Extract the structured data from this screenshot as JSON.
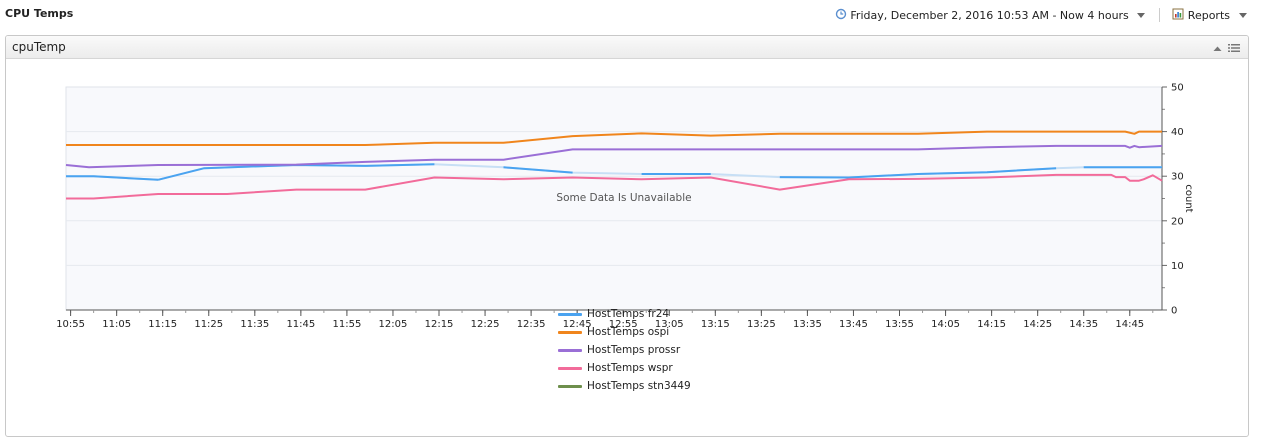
{
  "header": {
    "title": "CPU Temps",
    "timerange": "Friday, December 2, 2016 10:53 AM - Now 4 hours",
    "reports_label": "Reports"
  },
  "panel": {
    "title": "cpuTemp"
  },
  "colors": {
    "HostTemps fr24": "#4aa3f0",
    "HostTemps ospi": "#f0851c",
    "HostTemps prossr": "#9a6fd6",
    "HostTemps wspr": "#f26b9a",
    "HostTemps stn3449": "#6e8f4c",
    "gap": "#c7dff5"
  },
  "chart_data": {
    "type": "line",
    "ylabel": "count",
    "ylim": [
      0,
      50
    ],
    "yticks": [
      0,
      10,
      20,
      30,
      40,
      50
    ],
    "annotation": "Some Data Is Unavailable",
    "xticks": [
      "10:55",
      "11:05",
      "11:15",
      "11:25",
      "11:35",
      "11:45",
      "11:55",
      "12:05",
      "12:15",
      "12:25",
      "12:35",
      "12:45",
      "12:55",
      "13:05",
      "13:15",
      "13:25",
      "13:35",
      "13:45",
      "13:55",
      "14:05",
      "14:15",
      "14:25",
      "14:35",
      "14:45"
    ],
    "xlim": [
      "10:54",
      "14:52"
    ],
    "series": [
      {
        "name": "HostTemps fr24",
        "x": [
          "10:54",
          "11:00",
          "11:14",
          "11:24",
          "11:44",
          "11:59",
          "12:14",
          "12:29",
          "12:44",
          "12:59",
          "13:14",
          "13:29",
          "13:44",
          "13:59",
          "14:14",
          "14:29",
          "14:35",
          "14:52"
        ],
        "y": [
          30,
          30,
          29.2,
          31.8,
          32.5,
          32.3,
          32.7,
          32,
          30.8,
          30.5,
          30.5,
          29.8,
          29.7,
          30.5,
          30.9,
          31.8,
          32,
          32
        ]
      },
      {
        "name": "HostTemps ospi",
        "x": [
          "10:54",
          "11:59",
          "12:14",
          "12:29",
          "12:44",
          "12:59",
          "13:14",
          "13:29",
          "13:44",
          "13:59",
          "14:14",
          "14:29",
          "14:44",
          "14:46",
          "14:47",
          "14:52"
        ],
        "y": [
          37,
          37,
          37.5,
          37.5,
          39,
          39.6,
          39.1,
          39.5,
          39.5,
          39.5,
          40,
          40,
          40,
          39.5,
          40,
          40
        ]
      },
      {
        "name": "HostTemps prossr",
        "x": [
          "10:54",
          "10:59",
          "11:14",
          "11:44",
          "11:59",
          "12:14",
          "12:29",
          "12:44",
          "12:59",
          "13:14",
          "13:29",
          "13:44",
          "13:59",
          "14:14",
          "14:29",
          "14:44",
          "14:45",
          "14:46",
          "14:47",
          "14:52"
        ],
        "y": [
          32.5,
          32,
          32.5,
          32.6,
          33.2,
          33.7,
          33.7,
          36,
          36,
          36,
          36,
          36,
          36,
          36.5,
          36.8,
          36.8,
          36.4,
          36.8,
          36.5,
          36.8
        ]
      },
      {
        "name": "HostTemps wspr",
        "x": [
          "10:54",
          "11:00",
          "11:14",
          "11:29",
          "11:44",
          "11:59",
          "12:14",
          "12:29",
          "12:44",
          "12:59",
          "13:14",
          "13:29",
          "13:44",
          "13:59",
          "14:14",
          "14:29",
          "14:41",
          "14:42",
          "14:44",
          "14:45",
          "14:47",
          "14:48",
          "14:50",
          "14:52"
        ],
        "y": [
          25,
          25,
          26,
          26,
          27,
          27,
          29.7,
          29.3,
          29.7,
          29.3,
          29.7,
          27,
          29.3,
          29.4,
          29.7,
          30.3,
          30.3,
          29.8,
          29.8,
          29,
          29,
          29.3,
          30.2,
          29
        ]
      },
      {
        "name": "HostTemps stn3449",
        "x": [],
        "y": []
      }
    ]
  }
}
